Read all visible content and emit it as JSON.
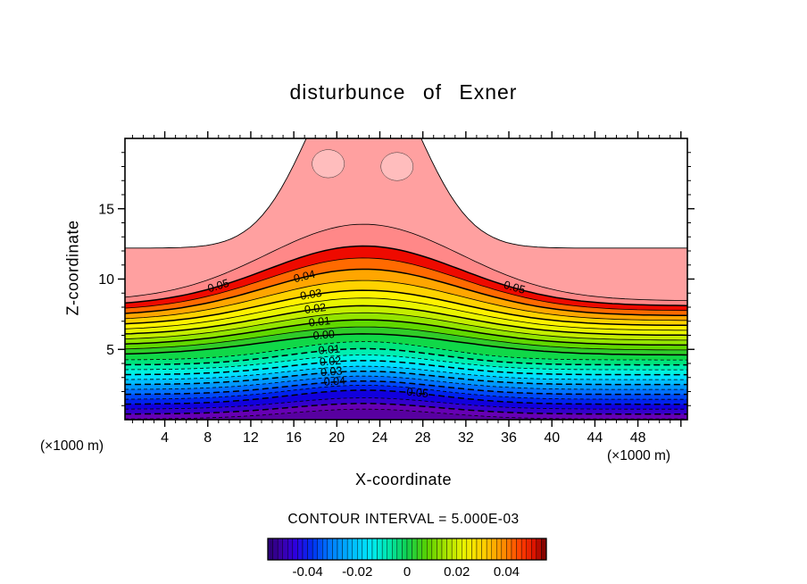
{
  "chart_data": {
    "type": "contour",
    "title": "disturbunce of Exner",
    "xlabel": "X-coordinate",
    "ylabel": "Z-coordinate",
    "x_unit_left": "(×1000 m)",
    "x_unit_right": "(×1000 m)",
    "contour_interval_label": "CONTOUR INTERVAL = 5.000E-03",
    "x_range": [
      0.3,
      52.6
    ],
    "z_range": [
      0,
      20
    ],
    "x_major_ticks": [
      4,
      8,
      12,
      16,
      20,
      24,
      28,
      32,
      36,
      40,
      44,
      48
    ],
    "x_minor_step": 1,
    "z_major_ticks": [
      5,
      10,
      15
    ],
    "z_minor_step": 1,
    "contour_interval": 0.005,
    "bump": {
      "center_x": 22.5,
      "sigma_positive": 9,
      "sigma_negative": 7
    },
    "background_fill": "#5800a0",
    "contours": [
      {
        "level": -0.065,
        "side_z": 0.05,
        "center_z": 0.75,
        "dashed": true,
        "thick": false,
        "fill_above": "#6600b4"
      },
      {
        "level": -0.06,
        "side_z": 0.4,
        "center_z": 1.15,
        "dashed": true,
        "thick": true,
        "fill_above": "#3300cc"
      },
      {
        "level": -0.055,
        "side_z": 0.75,
        "center_z": 1.55,
        "dashed": true,
        "thick": false,
        "fill_above": "#1100dd"
      },
      {
        "level": -0.05,
        "side_z": 1.1,
        "center_z": 2.1,
        "dashed": true,
        "thick": true,
        "fill_above": "#0022ee",
        "label": "0.05",
        "label_x": [
          27.5
        ]
      },
      {
        "level": -0.045,
        "side_z": 1.45,
        "center_z": 2.45,
        "dashed": true,
        "thick": false,
        "fill_above": "#0048f8"
      },
      {
        "level": -0.04,
        "side_z": 1.8,
        "center_z": 2.75,
        "dashed": true,
        "thick": true,
        "fill_above": "#0070ff",
        "label": "0.04",
        "label_x": [
          19.8
        ]
      },
      {
        "level": -0.035,
        "side_z": 2.15,
        "center_z": 3.1,
        "dashed": true,
        "thick": false,
        "fill_above": "#0098ff"
      },
      {
        "level": -0.03,
        "side_z": 2.5,
        "center_z": 3.45,
        "dashed": true,
        "thick": true,
        "fill_above": "#00beff",
        "label": "0.03",
        "label_x": [
          19.5
        ]
      },
      {
        "level": -0.025,
        "side_z": 2.85,
        "center_z": 3.8,
        "dashed": true,
        "thick": false,
        "fill_above": "#00e0ff"
      },
      {
        "level": -0.02,
        "side_z": 3.2,
        "center_z": 4.2,
        "dashed": true,
        "thick": true,
        "fill_above": "#00f2e0",
        "label": "0.02",
        "label_x": [
          19.4
        ]
      },
      {
        "level": -0.015,
        "side_z": 3.55,
        "center_z": 4.6,
        "dashed": true,
        "thick": false,
        "fill_above": "#00eeb0"
      },
      {
        "level": -0.01,
        "side_z": 3.9,
        "center_z": 5.05,
        "dashed": true,
        "thick": true,
        "fill_above": "#00e47c",
        "label": "0.01",
        "label_x": [
          19.3
        ]
      },
      {
        "level": -0.005,
        "side_z": 4.25,
        "center_z": 5.55,
        "dashed": true,
        "thick": false,
        "fill_above": "#10d848"
      },
      {
        "level": 0.0,
        "side_z": 4.6,
        "center_z": 6.1,
        "dashed": false,
        "thick": true,
        "fill_above": "#30cc28",
        "label": "0.00",
        "label_x": [
          18.8
        ]
      },
      {
        "level": 0.005,
        "side_z": 4.95,
        "center_z": 6.6,
        "dashed": false,
        "thick": false,
        "fill_above": "#60d800"
      },
      {
        "level": 0.01,
        "side_z": 5.3,
        "center_z": 7.1,
        "dashed": false,
        "thick": true,
        "fill_above": "#94e400",
        "label": "0.01",
        "label_x": [
          18.4
        ]
      },
      {
        "level": 0.015,
        "side_z": 5.65,
        "center_z": 7.6,
        "dashed": false,
        "thick": false,
        "fill_above": "#c4ee00"
      },
      {
        "level": 0.02,
        "side_z": 6.0,
        "center_z": 8.1,
        "dashed": false,
        "thick": true,
        "fill_above": "#e9f500",
        "label": "0.02",
        "label_x": [
          18.0
        ]
      },
      {
        "level": 0.025,
        "side_z": 6.35,
        "center_z": 8.65,
        "dashed": false,
        "thick": false,
        "fill_above": "#fff200"
      },
      {
        "level": 0.03,
        "side_z": 6.7,
        "center_z": 9.2,
        "dashed": false,
        "thick": true,
        "fill_above": "#ffd200",
        "label": "0.03",
        "label_x": [
          17.6
        ]
      },
      {
        "level": 0.035,
        "side_z": 7.05,
        "center_z": 9.9,
        "dashed": false,
        "thick": false,
        "fill_above": "#ffa600"
      },
      {
        "level": 0.04,
        "side_z": 7.4,
        "center_z": 10.7,
        "dashed": false,
        "thick": true,
        "fill_above": "#ff6a00",
        "label": "0.04",
        "label_x": [
          17.0
        ]
      },
      {
        "level": 0.045,
        "side_z": 7.75,
        "center_z": 11.5,
        "dashed": false,
        "thick": false,
        "fill_above": "#ee0a00"
      },
      {
        "level": 0.05,
        "side_z": 8.1,
        "center_z": 12.35,
        "dashed": false,
        "thick": true,
        "fill_above": "#ff8888",
        "label": "0.05",
        "label_x": [
          9.0,
          36.5
        ]
      },
      {
        "level": 0.055,
        "side_z": 8.45,
        "center_z": 13.9,
        "dashed": false,
        "thick": false,
        "fill_above": "#ffa0a0"
      }
    ],
    "upper_boundary": {
      "side_z": 12.2,
      "center_z": 26.0,
      "sigma": 5.0
    },
    "highlight_spots": [
      {
        "x": 19.2,
        "z": 18.2,
        "rx": 1.5,
        "rz": 1.0
      },
      {
        "x": 25.6,
        "z": 18.0,
        "rx": 1.5,
        "rz": 1.0
      }
    ],
    "colorbar": {
      "labels": [
        "-0.04",
        "-0.02",
        "0",
        "0.02",
        "0.04"
      ],
      "label_values": [
        -0.04,
        -0.02,
        0,
        0.02,
        0.04
      ],
      "range": [
        -0.056,
        0.056
      ],
      "cells": 56,
      "stops": [
        [
          0.0,
          "#2a0070"
        ],
        [
          0.05,
          "#3a00a8"
        ],
        [
          0.1,
          "#2e00e0"
        ],
        [
          0.16,
          "#0030f0"
        ],
        [
          0.22,
          "#0078ff"
        ],
        [
          0.3,
          "#00b8ff"
        ],
        [
          0.37,
          "#00eaf8"
        ],
        [
          0.43,
          "#00e8b0"
        ],
        [
          0.5,
          "#10d050"
        ],
        [
          0.57,
          "#58d000"
        ],
        [
          0.64,
          "#a8e400"
        ],
        [
          0.71,
          "#eef200"
        ],
        [
          0.78,
          "#ffcc00"
        ],
        [
          0.85,
          "#ff8800"
        ],
        [
          0.91,
          "#ff3c00"
        ],
        [
          0.96,
          "#d81000"
        ],
        [
          1.0,
          "#700000"
        ]
      ]
    }
  }
}
